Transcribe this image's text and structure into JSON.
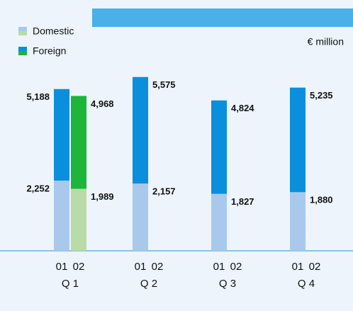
{
  "chart_data": {
    "type": "stacked_bar",
    "unit": "€ million",
    "groups": [
      "Q 1",
      "Q 2",
      "Q 3",
      "Q 4"
    ],
    "years": [
      "01",
      "02"
    ],
    "ylim": [
      0,
      6000
    ],
    "series": [
      {
        "name": "Domestic",
        "color": "#a8c9ec",
        "color_02": "#b8dba8",
        "values": [
          2252,
          1989,
          2157,
          null,
          1827,
          null,
          1880,
          null
        ],
        "value_labels": [
          "2,252",
          "1,989",
          "2,157",
          null,
          "1,827",
          null,
          "1,880",
          null
        ]
      },
      {
        "name": "Foreign",
        "color": "#0a8fdc",
        "color_02": "#1db53a",
        "values": [
          2936,
          2979,
          3418,
          null,
          2997,
          null,
          3355,
          null
        ]
      }
    ],
    "total_labels": [
      "5,188",
      "4,968",
      "5,575",
      null,
      "4,824",
      null,
      "5,235",
      null
    ]
  }
}
